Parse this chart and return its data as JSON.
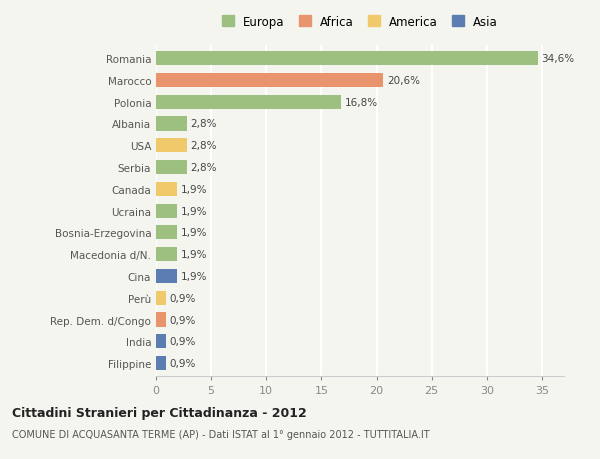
{
  "countries": [
    "Filippine",
    "India",
    "Rep. Dem. d/Congo",
    "Perù",
    "Cina",
    "Macedonia d/N.",
    "Bosnia-Erzegovina",
    "Ucraina",
    "Canada",
    "Serbia",
    "USA",
    "Albania",
    "Polonia",
    "Marocco",
    "Romania"
  ],
  "values": [
    0.9,
    0.9,
    0.9,
    0.9,
    1.9,
    1.9,
    1.9,
    1.9,
    1.9,
    2.8,
    2.8,
    2.8,
    16.8,
    20.6,
    34.6
  ],
  "colors": [
    "#5b7db1",
    "#5b7db1",
    "#e8956d",
    "#f0c96b",
    "#5b7db1",
    "#9dbf7f",
    "#9dbf7f",
    "#9dbf7f",
    "#f0c96b",
    "#9dbf7f",
    "#f0c96b",
    "#9dbf7f",
    "#9dbf7f",
    "#e8956d",
    "#9dbf7f"
  ],
  "labels": [
    "0,9%",
    "0,9%",
    "0,9%",
    "0,9%",
    "1,9%",
    "1,9%",
    "1,9%",
    "1,9%",
    "1,9%",
    "2,8%",
    "2,8%",
    "2,8%",
    "16,8%",
    "20,6%",
    "34,6%"
  ],
  "legend": [
    "Europa",
    "Africa",
    "America",
    "Asia"
  ],
  "legend_colors": [
    "#9dbf7f",
    "#e8956d",
    "#f0c96b",
    "#5b7db1"
  ],
  "title": "Cittadini Stranieri per Cittadinanza - 2012",
  "subtitle": "COMUNE DI ACQUASANTA TERME (AP) - Dati ISTAT al 1° gennaio 2012 - TUTTITALIA.IT",
  "xlim": [
    0,
    37
  ],
  "xticks": [
    0,
    5,
    10,
    15,
    20,
    25,
    30,
    35
  ],
  "background_color": "#f5f5f0",
  "grid_color": "#ffffff",
  "bar_height": 0.65
}
